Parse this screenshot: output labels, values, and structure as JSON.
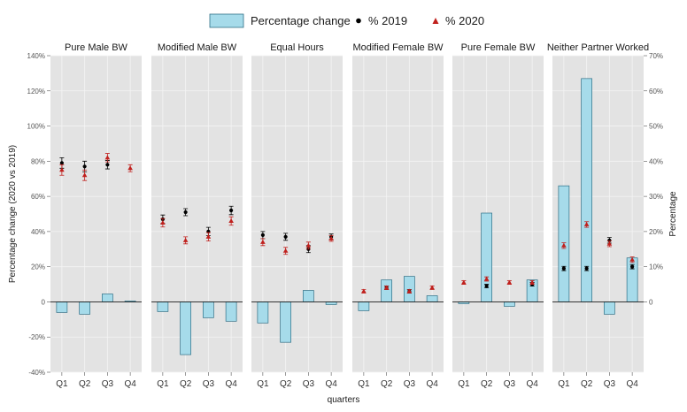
{
  "chart_data": {
    "type": "bar",
    "legend": {
      "position": "top",
      "bar_label": "Percentage change",
      "point_2019_label": "% 2019",
      "point_2020_label": "% 2020"
    },
    "xlabel": "quarters",
    "ylabel_left": "Percentage change (2020 vs 2019)",
    "ylabel_right": "Percentage",
    "ylim_left": [
      -40,
      140
    ],
    "ylim_right": [
      -20,
      70
    ],
    "ticks_left": [
      "-40%",
      "-20%",
      "0",
      "20%",
      "40%",
      "60%",
      "80%",
      "100%",
      "120%",
      "140%"
    ],
    "ticks_right": [
      "0",
      "10%",
      "20%",
      "30%",
      "40%",
      "50%",
      "60%",
      "70%"
    ],
    "categories": [
      "Q1",
      "Q2",
      "Q3",
      "Q4"
    ],
    "colors": {
      "bar_fill": "#a6dbea",
      "bar_stroke": "#2f6f86",
      "point_2019": "#000000",
      "point_2020": "#c0201d",
      "panel_bg": "#e3e3e3",
      "grid": "#f4f4f4"
    },
    "panels": [
      {
        "title": "Pure Male BW",
        "pct_change": [
          -6,
          -7,
          4.5,
          0.5
        ],
        "pct_2019": [
          39.5,
          38.5,
          39,
          null
        ],
        "pct_2020": [
          37.5,
          36,
          41,
          38
        ],
        "err_2019": [
          1.5,
          1.5,
          1.2,
          null
        ],
        "err_2020": [
          1.5,
          1.5,
          1.2,
          1.0
        ]
      },
      {
        "title": "Modified Male BW",
        "pct_change": [
          -5.5,
          -30,
          -9,
          -11
        ],
        "pct_2019": [
          23.5,
          25.5,
          20,
          26
        ],
        "pct_2020": [
          22.5,
          17.5,
          18.5,
          23
        ],
        "err_2019": [
          1.2,
          1.0,
          1.2,
          1.2
        ],
        "err_2020": [
          1.2,
          1.0,
          1.2,
          1.2
        ]
      },
      {
        "title": "Equal Hours",
        "pct_change": [
          -12,
          -23,
          6.5,
          -1.5
        ],
        "pct_2019": [
          19,
          18.5,
          15,
          18.5
        ],
        "pct_2020": [
          17,
          14.5,
          16,
          18
        ],
        "err_2019": [
          1.0,
          1.0,
          1.0,
          0.8
        ],
        "err_2020": [
          1.0,
          1.0,
          1.0,
          0.8
        ]
      },
      {
        "title": "Modified Female BW",
        "pct_change": [
          -5,
          12.5,
          14.5,
          3.5
        ],
        "pct_2019": [
          null,
          4,
          3,
          null
        ],
        "pct_2020": [
          3,
          4,
          3,
          4
        ],
        "err_2019": [
          null,
          0.5,
          0.5,
          null
        ],
        "err_2020": [
          0.5,
          0.5,
          0.5,
          0.5
        ]
      },
      {
        "title": "Pure Female BW",
        "pct_change": [
          -1,
          50.5,
          -2.5,
          12.5
        ],
        "pct_2019": [
          null,
          4.5,
          null,
          5
        ],
        "pct_2020": [
          5.5,
          6.5,
          5.5,
          5.5
        ],
        "err_2019": [
          null,
          0.5,
          null,
          0.5
        ],
        "err_2020": [
          0.5,
          0.6,
          0.5,
          0.5
        ]
      },
      {
        "title": "Neither Partner Worked",
        "pct_change": [
          66,
          127,
          -7,
          25
        ],
        "pct_2019": [
          9.5,
          9.5,
          17.5,
          10
        ],
        "pct_2020": [
          16,
          22,
          16.5,
          12
        ],
        "err_2019": [
          0.6,
          0.6,
          0.8,
          0.6
        ],
        "err_2020": [
          0.8,
          0.8,
          0.8,
          0.8
        ]
      }
    ]
  }
}
